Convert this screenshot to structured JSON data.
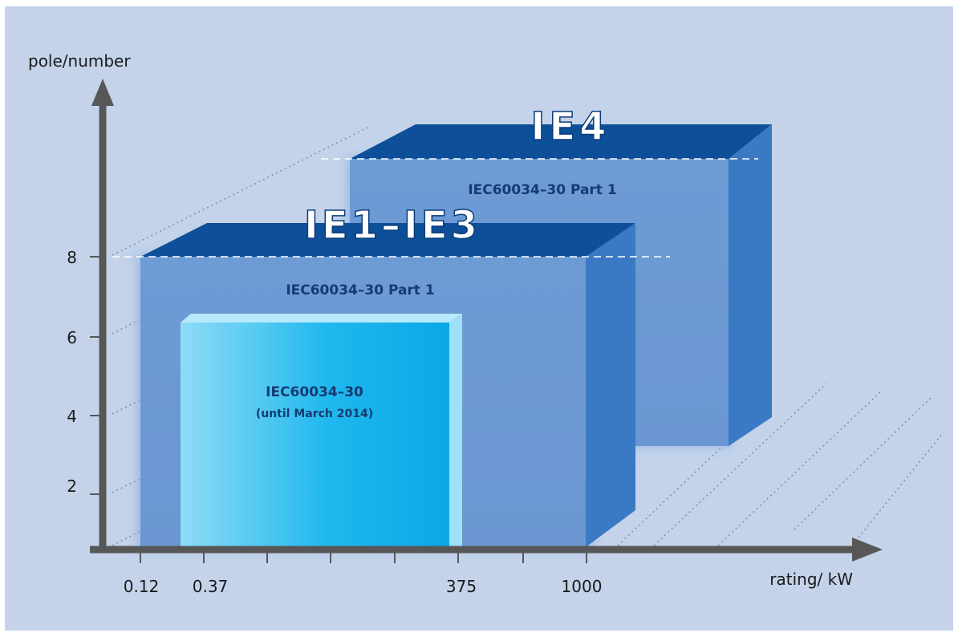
{
  "axes": {
    "y_label": "pole/number",
    "x_label": "rating/ kW",
    "y_ticks": [
      "2",
      "4",
      "6",
      "8"
    ],
    "x_ticks": [
      "0.12",
      "0.37",
      "375",
      "1000"
    ]
  },
  "boxes": {
    "ie4": {
      "title": "IE4",
      "subtitle": "IEC60034–30 Part 1"
    },
    "ie1_ie3": {
      "title": "IE1–IE3",
      "subtitle": "IEC60034–30 Part 1"
    },
    "old_standard": {
      "line1": "IEC60034–30",
      "line2": "(until March 2014)"
    }
  },
  "colors": {
    "background": "#c4d3ea",
    "box_front": "#6a98d2",
    "box_top": "#0d4f98",
    "title_text": "#ffffff",
    "label_text": "#163b70",
    "old_box": "#1fb3ea",
    "axis": "#575757"
  }
}
